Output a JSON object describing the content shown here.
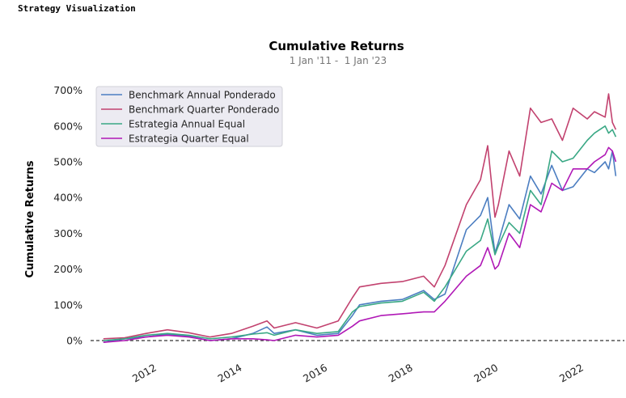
{
  "app_title": "Strategy Visualization",
  "chart_data": {
    "type": "line",
    "title": "Cumulative Returns",
    "subtitle": " 1 Jan '11 -  1 Jan '23",
    "ylabel": "Cumulative Returns",
    "xlabel": "",
    "x_range": [
      2010.7,
      2023.2
    ],
    "ylim": [
      -50,
      720
    ],
    "y_ticks": [
      0,
      100,
      200,
      300,
      400,
      500,
      600,
      700
    ],
    "y_tick_labels": [
      "0%",
      "100%",
      "200%",
      "300%",
      "400%",
      "500%",
      "600%",
      "700%"
    ],
    "x_ticks": [
      2012,
      2014,
      2016,
      2018,
      2020,
      2022
    ],
    "x_tick_labels": [
      "2012",
      "2014",
      "2016",
      "2018",
      "2020",
      "2022"
    ],
    "legend_position": "top-left",
    "zero_line": true,
    "series": [
      {
        "name": "Benchmark Annual Ponderado",
        "color": "#4c7ec1",
        "x": [
          2011.0,
          2011.5,
          2012.0,
          2012.5,
          2013.0,
          2013.5,
          2014.0,
          2014.5,
          2014.83,
          2015.0,
          2015.5,
          2016.0,
          2016.5,
          2016.83,
          2017.0,
          2017.5,
          2018.0,
          2018.5,
          2018.75,
          2019.0,
          2019.5,
          2019.83,
          2020.0,
          2020.17,
          2020.25,
          2020.5,
          2020.75,
          2021.0,
          2021.25,
          2021.5,
          2021.75,
          2022.0,
          2022.33,
          2022.5,
          2022.75,
          2022.83,
          2022.92,
          2023.0
        ],
        "y": [
          -5,
          5,
          10,
          18,
          12,
          0,
          5,
          20,
          38,
          20,
          30,
          15,
          20,
          70,
          100,
          110,
          115,
          140,
          115,
          130,
          310,
          350,
          400,
          245,
          275,
          380,
          340,
          460,
          410,
          490,
          420,
          430,
          480,
          470,
          500,
          480,
          530,
          460
        ]
      },
      {
        "name": "Benchmark Quarter Ponderado",
        "color": "#c2426f",
        "x": [
          2011.0,
          2011.5,
          2012.0,
          2012.5,
          2013.0,
          2013.5,
          2014.0,
          2014.5,
          2014.83,
          2015.0,
          2015.5,
          2016.0,
          2016.5,
          2016.83,
          2017.0,
          2017.5,
          2018.0,
          2018.5,
          2018.75,
          2019.0,
          2019.5,
          2019.83,
          2020.0,
          2020.17,
          2020.25,
          2020.5,
          2020.75,
          2021.0,
          2021.25,
          2021.5,
          2021.75,
          2022.0,
          2022.33,
          2022.5,
          2022.75,
          2022.83,
          2022.92,
          2023.0
        ],
        "y": [
          5,
          8,
          20,
          30,
          22,
          10,
          20,
          40,
          55,
          35,
          50,
          35,
          55,
          120,
          150,
          160,
          165,
          180,
          150,
          210,
          380,
          450,
          545,
          345,
          380,
          530,
          460,
          650,
          610,
          620,
          560,
          650,
          620,
          640,
          625,
          690,
          610,
          590
        ]
      },
      {
        "name": "Estrategia Annual Equal",
        "color": "#3aa885",
        "x": [
          2011.0,
          2011.5,
          2012.0,
          2012.5,
          2013.0,
          2013.5,
          2014.0,
          2014.5,
          2014.83,
          2015.0,
          2015.5,
          2016.0,
          2016.5,
          2016.83,
          2017.0,
          2017.5,
          2018.0,
          2018.5,
          2018.75,
          2019.0,
          2019.5,
          2019.83,
          2020.0,
          2020.17,
          2020.25,
          2020.5,
          2020.75,
          2021.0,
          2021.25,
          2021.5,
          2021.75,
          2022.0,
          2022.33,
          2022.5,
          2022.75,
          2022.83,
          2022.92,
          2023.0
        ],
        "y": [
          0,
          5,
          15,
          20,
          15,
          5,
          10,
          18,
          22,
          15,
          30,
          20,
          25,
          80,
          95,
          105,
          110,
          135,
          110,
          150,
          250,
          280,
          340,
          240,
          265,
          330,
          300,
          420,
          380,
          530,
          500,
          510,
          560,
          580,
          600,
          580,
          590,
          570
        ]
      },
      {
        "name": "Estrategia Quarter Equal",
        "color": "#b018b6",
        "x": [
          2011.0,
          2011.5,
          2012.0,
          2012.5,
          2013.0,
          2013.5,
          2014.0,
          2014.5,
          2014.83,
          2015.0,
          2015.5,
          2016.0,
          2016.5,
          2016.83,
          2017.0,
          2017.5,
          2018.0,
          2018.5,
          2018.75,
          2019.0,
          2019.5,
          2019.83,
          2020.0,
          2020.17,
          2020.25,
          2020.5,
          2020.75,
          2021.0,
          2021.25,
          2021.5,
          2021.75,
          2022.0,
          2022.33,
          2022.5,
          2022.75,
          2022.83,
          2022.92,
          2023.0
        ],
        "y": [
          -5,
          0,
          10,
          15,
          10,
          0,
          5,
          5,
          2,
          0,
          15,
          10,
          15,
          40,
          55,
          70,
          75,
          80,
          80,
          110,
          180,
          210,
          260,
          200,
          210,
          300,
          260,
          380,
          360,
          440,
          420,
          480,
          480,
          500,
          520,
          540,
          530,
          500
        ]
      }
    ]
  }
}
